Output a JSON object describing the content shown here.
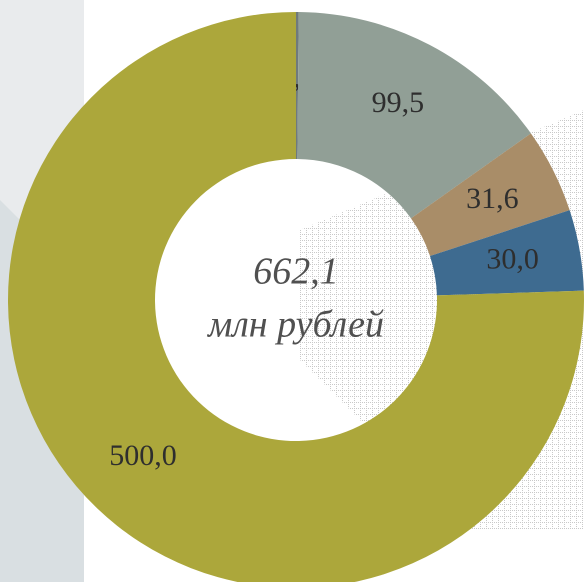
{
  "chart_data": {
    "type": "donut",
    "values": [
      1.0,
      99.5,
      31.6,
      30.0,
      500.0
    ],
    "value_labels": [
      "1,0",
      "99,5",
      "31,6",
      "30,0",
      "500,0"
    ],
    "colors": [
      "#6f7a7c",
      "#919f96",
      "#a98d68",
      "#3e6b90",
      "#aca73b"
    ],
    "annotations": [
      "662,1",
      "млн рублей"
    ]
  }
}
